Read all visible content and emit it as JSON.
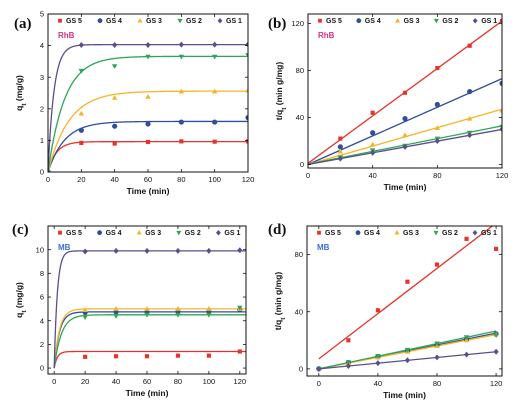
{
  "figure": {
    "background": "#ffffff"
  },
  "series_styles": [
    {
      "name": "GS 5",
      "color": "#e8322c",
      "marker": "square"
    },
    {
      "name": "GS 4",
      "color": "#2f4f9a",
      "marker": "circle"
    },
    {
      "name": "GS 3",
      "color": "#f5b52a",
      "marker": "triangle-up"
    },
    {
      "name": "GS 2",
      "color": "#2ea655",
      "marker": "triangle-down"
    },
    {
      "name": "GS 1",
      "color": "#5a4e8f",
      "marker": "diamond"
    }
  ],
  "chart_data": [
    {
      "panel": "(a)",
      "type": "scatter",
      "dye": "RhB",
      "dye_color": "#d63384",
      "xlabel": "Time (min)",
      "ylabel": "q_t (mg/g)",
      "xlim": [
        0,
        120
      ],
      "ylim": [
        0,
        5
      ],
      "xticks": [
        0,
        20,
        40,
        60,
        80,
        100,
        120
      ],
      "yticks": [
        0,
        1,
        2,
        3,
        4,
        5
      ],
      "legend": "top",
      "fit": "pseudo-first-order",
      "series": [
        {
          "name": "GS 5",
          "x": [
            0,
            20,
            40,
            60,
            80,
            100,
            120
          ],
          "y": [
            0,
            0.92,
            0.9,
            0.95,
            0.97,
            0.96,
            0.97
          ],
          "qe": 0.96,
          "k": 0.2
        },
        {
          "name": "GS 4",
          "x": [
            0,
            20,
            40,
            60,
            80,
            100,
            120
          ],
          "y": [
            0,
            1.32,
            1.45,
            1.52,
            1.58,
            1.58,
            1.72
          ],
          "qe": 1.6,
          "k": 0.1
        },
        {
          "name": "GS 3",
          "x": [
            0,
            20,
            40,
            60,
            80,
            100,
            120
          ],
          "y": [
            0,
            1.85,
            2.35,
            2.38,
            2.55,
            2.55,
            2.58
          ],
          "qe": 2.56,
          "k": 0.08
        },
        {
          "name": "GS 2",
          "x": [
            0,
            20,
            40,
            60,
            80,
            100,
            120
          ],
          "y": [
            0,
            3.2,
            3.35,
            3.65,
            3.65,
            3.65,
            3.7
          ],
          "qe": 3.66,
          "k": 0.1
        },
        {
          "name": "GS 1",
          "x": [
            0,
            20,
            40,
            60,
            80,
            100,
            120
          ],
          "y": [
            0,
            4.02,
            4.02,
            4.02,
            4.03,
            4.03,
            4.04
          ],
          "qe": 4.03,
          "k": 0.28
        }
      ]
    },
    {
      "panel": "(b)",
      "type": "scatter",
      "dye": "RhB",
      "dye_color": "#d63384",
      "xlabel": "Time (min)",
      "ylabel": "t/q_t (min g/mg)",
      "xlim": [
        0,
        120
      ],
      "ylim": [
        -3,
        128
      ],
      "xticks": [
        0,
        40,
        80,
        120
      ],
      "yticks": [
        0,
        40,
        80,
        120
      ],
      "legend": "top",
      "fit": "linear",
      "series": [
        {
          "name": "GS 5",
          "x": [
            20,
            40,
            60,
            80,
            100,
            120
          ],
          "y": [
            22,
            44,
            61,
            82,
            101,
            122
          ],
          "fit_line": [
            [
              0,
              1
            ],
            [
              120,
              122
            ]
          ]
        },
        {
          "name": "GS 4",
          "x": [
            20,
            40,
            60,
            80,
            100,
            120
          ],
          "y": [
            15,
            27,
            39,
            51,
            62,
            69
          ],
          "fit_line": [
            [
              0,
              0
            ],
            [
              120,
              73
            ]
          ]
        },
        {
          "name": "GS 3",
          "x": [
            20,
            40,
            60,
            80,
            100,
            120
          ],
          "y": [
            11,
            17,
            25,
            31,
            39,
            46
          ],
          "fit_line": [
            [
              0,
              0
            ],
            [
              120,
              47
            ]
          ]
        },
        {
          "name": "GS 2",
          "x": [
            20,
            40,
            60,
            80,
            100,
            120
          ],
          "y": [
            6,
            12,
            16,
            22,
            27,
            32
          ],
          "fit_line": [
            [
              0,
              0.3
            ],
            [
              120,
              32.8
            ]
          ]
        },
        {
          "name": "GS 1",
          "x": [
            20,
            40,
            60,
            80,
            100,
            120
          ],
          "y": [
            5,
            10,
            15,
            20,
            25,
            30
          ],
          "fit_line": [
            [
              0,
              0
            ],
            [
              120,
              29.8
            ]
          ]
        }
      ]
    },
    {
      "panel": "(c)",
      "type": "scatter",
      "dye": "MB",
      "dye_color": "#3b6fd1",
      "xlabel": "Time (min)",
      "ylabel": "q_t (mg/g)",
      "xlim": [
        -4,
        124
      ],
      "ylim": [
        -0.5,
        12
      ],
      "xticks": [
        0,
        20,
        40,
        60,
        80,
        100,
        120
      ],
      "yticks": [
        0,
        2,
        4,
        6,
        8,
        10
      ],
      "legend": "top",
      "fit": "pseudo-first-order",
      "series": [
        {
          "name": "GS 5",
          "x": [
            20,
            40,
            60,
            80,
            100,
            120
          ],
          "y": [
            0.95,
            1.0,
            1.0,
            1.05,
            1.05,
            1.4
          ],
          "qe": 1.4,
          "k": 0.5
        },
        {
          "name": "GS 4",
          "x": [
            20,
            40,
            60,
            80,
            100,
            120
          ],
          "y": [
            4.7,
            4.75,
            4.75,
            4.8,
            4.8,
            4.9
          ],
          "qe": 4.75,
          "k": 0.3
        },
        {
          "name": "GS 3",
          "x": [
            20,
            40,
            60,
            80,
            100,
            120
          ],
          "y": [
            4.9,
            5.0,
            5.0,
            5.0,
            5.0,
            5.0
          ],
          "qe": 5.0,
          "k": 0.3
        },
        {
          "name": "GS 2",
          "x": [
            20,
            40,
            60,
            80,
            100,
            120
          ],
          "y": [
            4.3,
            4.4,
            4.5,
            4.5,
            4.5,
            5.1
          ],
          "qe": 4.5,
          "k": 0.22
        },
        {
          "name": "GS 1",
          "x": [
            20,
            40,
            60,
            80,
            100,
            120
          ],
          "y": [
            9.85,
            9.9,
            9.9,
            9.9,
            9.9,
            9.95
          ],
          "qe": 9.9,
          "k": 0.5
        }
      ]
    },
    {
      "panel": "(d)",
      "type": "scatter",
      "dye": "MB",
      "dye_color": "#3b6fd1",
      "xlabel": "Time (min)",
      "ylabel": "t/q_t (min g/mg)",
      "xlim": [
        -8,
        124
      ],
      "ylim": [
        -5,
        100
      ],
      "xticks": [
        0,
        40,
        80,
        120
      ],
      "yticks": [
        0,
        40,
        80
      ],
      "legend": "top",
      "fit": "linear",
      "series": [
        {
          "name": "GS 5",
          "x": [
            20,
            40,
            60,
            80,
            100,
            120
          ],
          "y": [
            20,
            41,
            61,
            73,
            91,
            84
          ],
          "fit_line": [
            [
              0,
              7
            ],
            [
              120,
              102
            ]
          ]
        },
        {
          "name": "GS 4",
          "x": [
            0,
            20,
            40,
            60,
            80,
            100,
            120
          ],
          "y": [
            0,
            4.5,
            8.5,
            12.5,
            16.5,
            20.5,
            24.5
          ],
          "fit_line": [
            [
              0,
              0
            ],
            [
              120,
              25
            ]
          ]
        },
        {
          "name": "GS 3",
          "x": [
            0,
            20,
            40,
            60,
            80,
            100,
            120
          ],
          "y": [
            0,
            4,
            8,
            12,
            16,
            20,
            24
          ],
          "fit_line": [
            [
              0,
              0
            ],
            [
              120,
              24
            ]
          ]
        },
        {
          "name": "GS 2",
          "x": [
            0,
            20,
            40,
            60,
            80,
            100,
            120
          ],
          "y": [
            0,
            4.6,
            9,
            13.3,
            17.8,
            22.2,
            23.5
          ],
          "fit_line": [
            [
              0,
              0
            ],
            [
              120,
              26.5
            ]
          ]
        },
        {
          "name": "GS 1",
          "x": [
            0,
            20,
            40,
            60,
            80,
            100,
            120
          ],
          "y": [
            0,
            2,
            4,
            6,
            8,
            10,
            12
          ],
          "fit_line": [
            [
              0,
              0
            ],
            [
              120,
              12
            ]
          ]
        }
      ]
    }
  ]
}
